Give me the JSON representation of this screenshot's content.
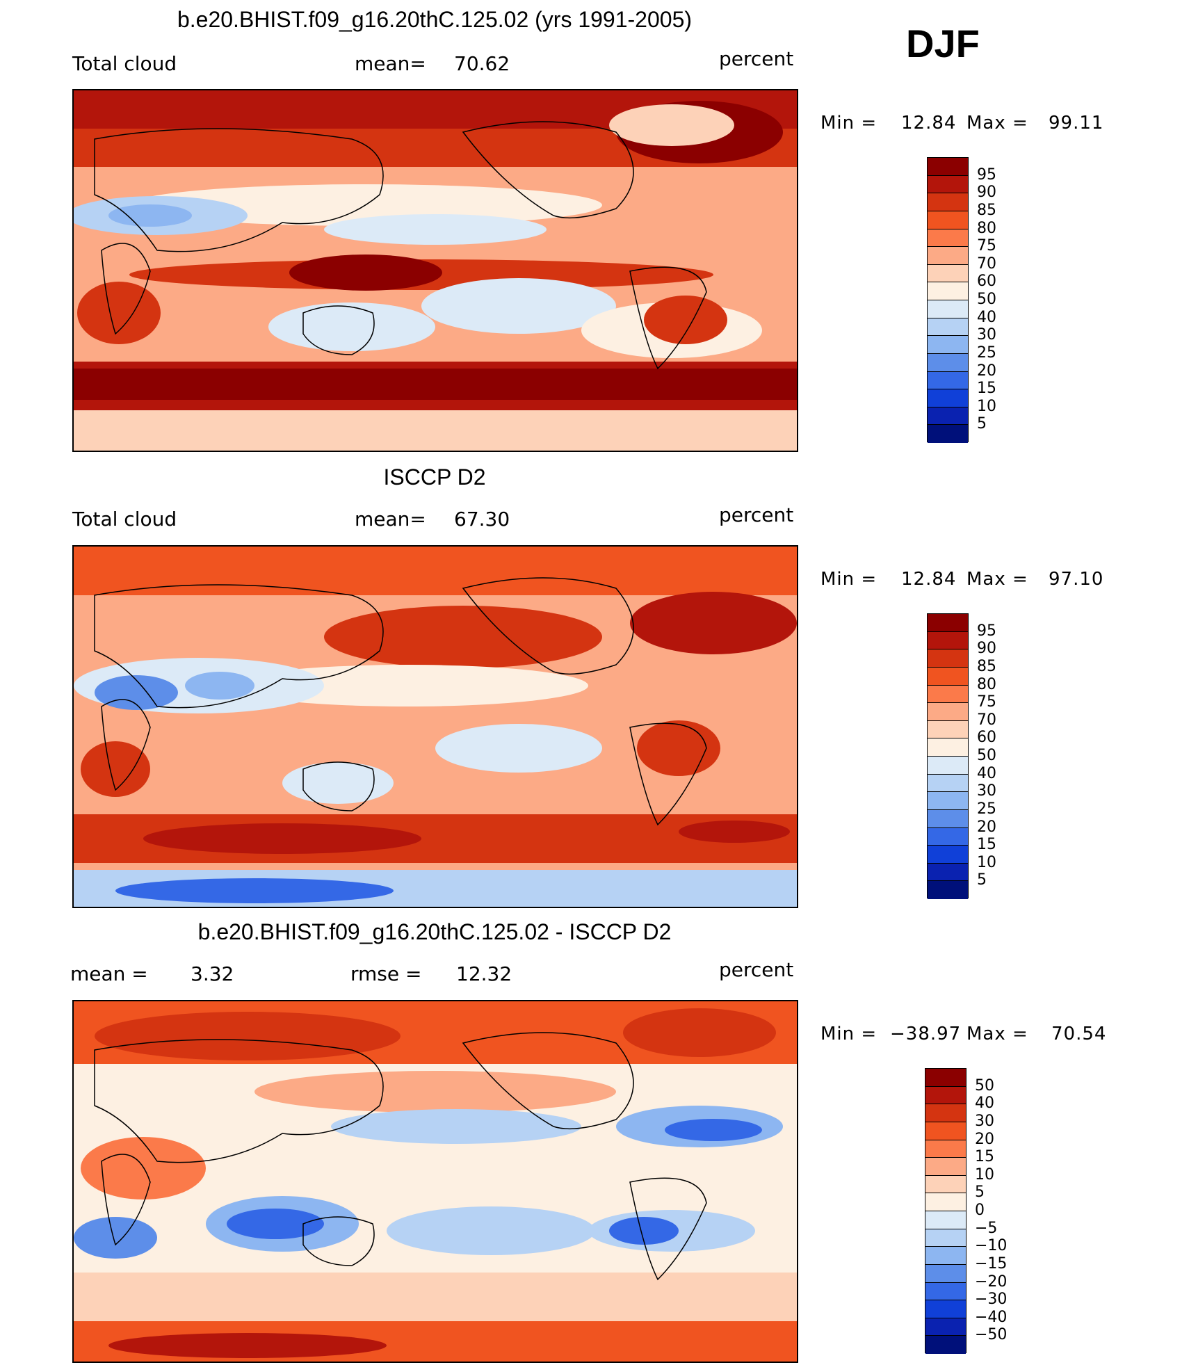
{
  "season": "DJF",
  "chart_data": [
    {
      "type": "heatmap",
      "title": "b.e20.BHIST.f09_g16.20thC.125.02 (yrs 1991-2005)",
      "left_label": "Total cloud",
      "mean_label": "mean=",
      "mean_value": "70.62",
      "units": "percent",
      "min_label": "Min =",
      "min_value": "12.84",
      "max_label": "Max =",
      "max_value": "99.11",
      "levels": [
        "95",
        "90",
        "85",
        "80",
        "75",
        "70",
        "60",
        "50",
        "40",
        "30",
        "25",
        "20",
        "15",
        "10",
        "5"
      ],
      "colors": [
        "#8b0000",
        "#b3150b",
        "#d43411",
        "#f05420",
        "#fb7a4a",
        "#fcaa86",
        "#fdd2b8",
        "#fdf0e2",
        "#dceaf7",
        "#b6d2f4",
        "#8db6f1",
        "#5d8ee9",
        "#3468e6",
        "#1040d8",
        "#0a22b0",
        "#00107a"
      ]
    },
    {
      "type": "heatmap",
      "title": "ISCCP D2",
      "left_label": "Total cloud",
      "mean_label": "mean=",
      "mean_value": "67.30",
      "units": "percent",
      "min_label": "Min =",
      "min_value": "12.84",
      "max_label": "Max =",
      "max_value": "97.10",
      "levels": [
        "95",
        "90",
        "85",
        "80",
        "75",
        "70",
        "60",
        "50",
        "40",
        "30",
        "25",
        "20",
        "15",
        "10",
        "5"
      ],
      "colors": [
        "#8b0000",
        "#b3150b",
        "#d43411",
        "#f05420",
        "#fb7a4a",
        "#fcaa86",
        "#fdd2b8",
        "#fdf0e2",
        "#dceaf7",
        "#b6d2f4",
        "#8db6f1",
        "#5d8ee9",
        "#3468e6",
        "#1040d8",
        "#0a22b0",
        "#00107a"
      ]
    },
    {
      "type": "heatmap",
      "title": "b.e20.BHIST.f09_g16.20thC.125.02 - ISCCP D2",
      "left_label": "mean =",
      "left_value": "3.32",
      "rmse_label": "rmse =",
      "rmse_value": "12.32",
      "units": "percent",
      "min_label": "Min =",
      "min_value": "−38.97",
      "max_label": "Max =",
      "max_value": "70.54",
      "levels": [
        "50",
        "40",
        "30",
        "20",
        "15",
        "10",
        "5",
        "0",
        "−5",
        "−10",
        "−15",
        "−20",
        "−30",
        "−40",
        "−50"
      ],
      "colors": [
        "#8b0000",
        "#b3150b",
        "#d43411",
        "#f05420",
        "#fb7a4a",
        "#fcaa86",
        "#fdd2b8",
        "#fdf0e2",
        "#dceaf7",
        "#b6d2f4",
        "#8db6f1",
        "#5d8ee9",
        "#3468e6",
        "#1040d8",
        "#0a22b0",
        "#00107a"
      ]
    }
  ]
}
